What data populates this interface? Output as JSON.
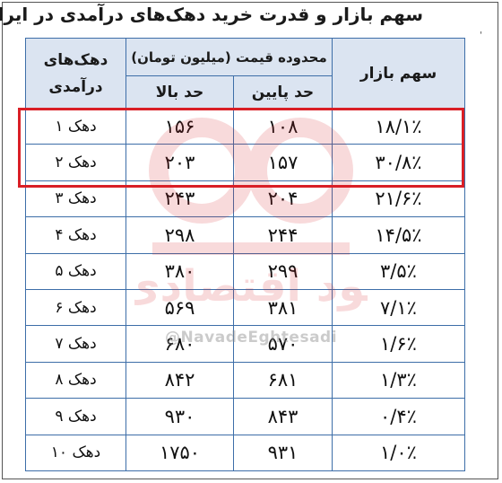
{
  "title": "سهم بازار و قدرت خرید دهک‌های درآمدی در ایران",
  "headers": {
    "market_share": "سهم بازار",
    "price_range": "محدوده قیمت (میلیون تومان)",
    "lower_bound": "حد پایین",
    "upper_bound": "حد بالا",
    "deciles_line1": "دهک‌های",
    "deciles_line2": "درآمدی"
  },
  "rows": [
    {
      "share": "۱۸/۱٪",
      "low": "۱۰۸",
      "high": "۱۵۶",
      "decile": "دهک ۱"
    },
    {
      "share": "۳۰/۸٪",
      "low": "۱۵۷",
      "high": "۲۰۳",
      "decile": "دهک ۲"
    },
    {
      "share": "۲۱/۶٪",
      "low": "۲۰۴",
      "high": "۲۴۳",
      "decile": "دهک ۳"
    },
    {
      "share": "۱۴/۵٪",
      "low": "۲۴۴",
      "high": "۲۹۸",
      "decile": "دهک ۴"
    },
    {
      "share": "۳/۵٪",
      "low": "۲۹۹",
      "high": "۳۸۰",
      "decile": "دهک ۵"
    },
    {
      "share": "۷/۱٪",
      "low": "۳۸۱",
      "high": "۵۶۹",
      "decile": "دهک ۶"
    },
    {
      "share": "۱/۶٪",
      "low": "۵۷۰",
      "high": "۶۸۰",
      "decile": "دهک ۷"
    },
    {
      "share": "۱/۳٪",
      "low": "۶۸۱",
      "high": "۸۴۲",
      "decile": "دهک ۸"
    },
    {
      "share": "۰/۴٪",
      "low": "۸۴۳",
      "high": "۹۳۰",
      "decile": "دهک ۹"
    },
    {
      "share": "۱/۰٪",
      "low": "۹۳۱",
      "high": "۱۷۵۰",
      "decile": "دهک ۱۰"
    }
  ],
  "watermark": {
    "logo_text": "نود اقتصادی",
    "handle": "@NavadeEghtesadi"
  },
  "colors": {
    "header_bg": "#dbe4f1",
    "border": "#3d6ea8",
    "highlight": "#d91f26",
    "watermark": "#d91f26"
  }
}
